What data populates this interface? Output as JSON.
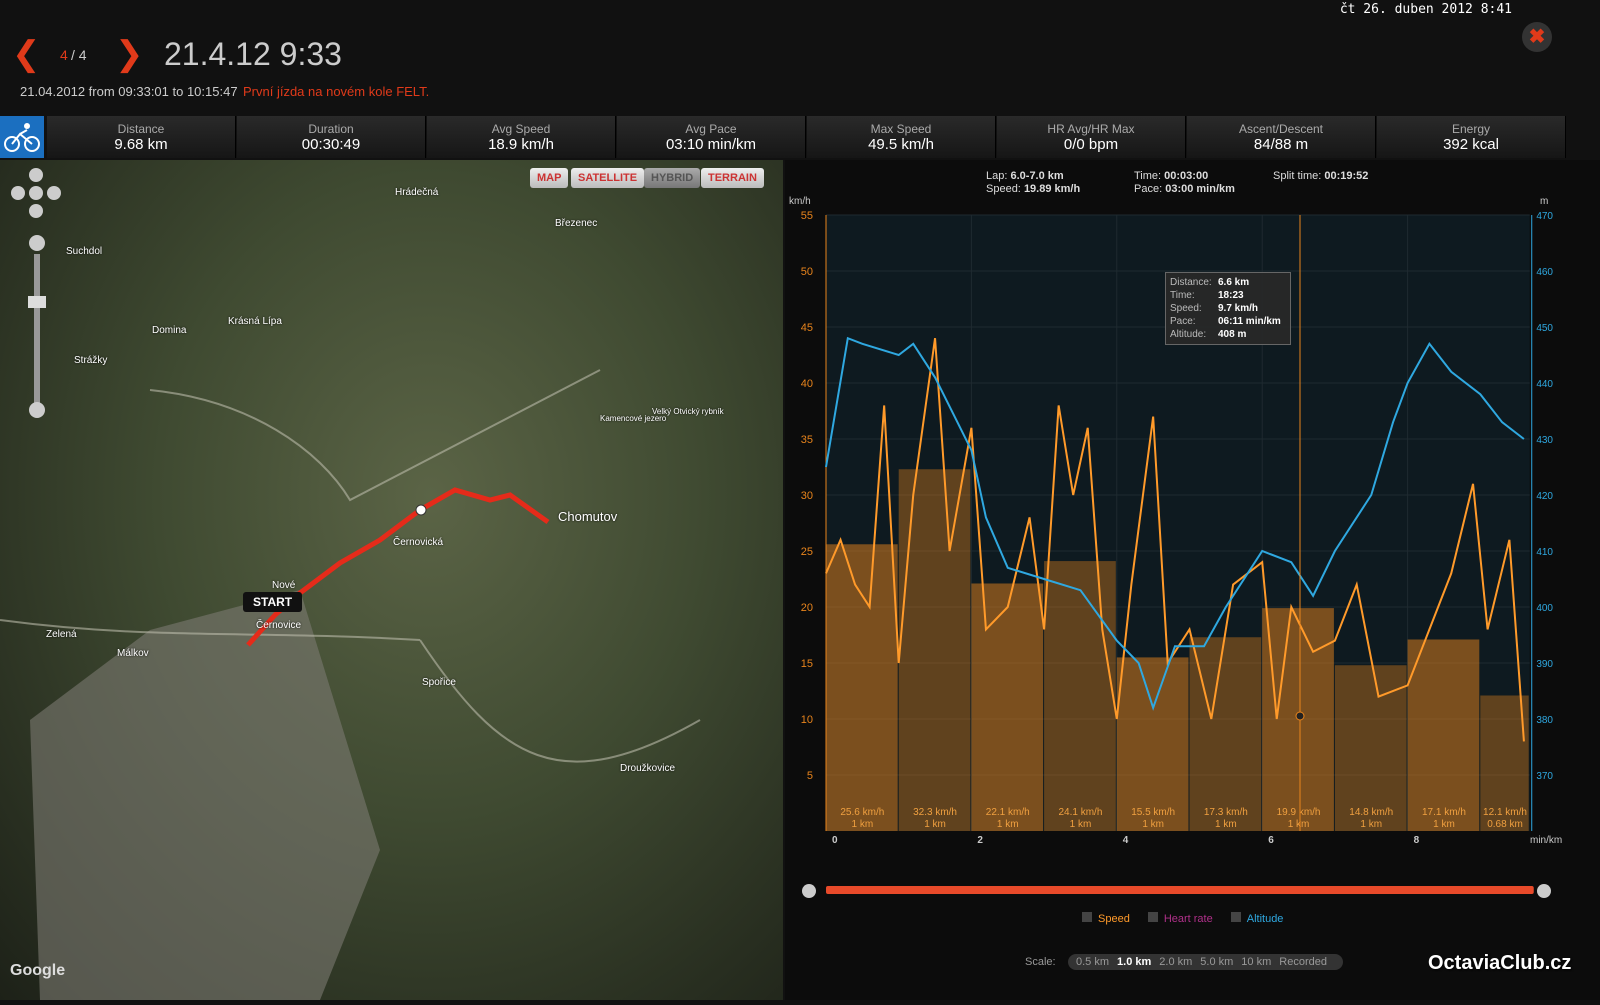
{
  "header": {
    "clock": "čt 26. duben 2012 8:41",
    "page": "4",
    "of": "/ 4",
    "title": "21.4.12 9:33",
    "date_range": "21.04.2012 from 09:33:01 to 10:15:47",
    "note": "První jízda na novém kole FELT."
  },
  "stats": [
    {
      "label": "Distance",
      "value": "9.68 km"
    },
    {
      "label": "Duration",
      "value": "00:30:49"
    },
    {
      "label": "Avg Speed",
      "value": "18.9 km/h"
    },
    {
      "label": "Avg Pace",
      "value": "03:10 min/km"
    },
    {
      "label": "Max Speed",
      "value": "49.5 km/h"
    },
    {
      "label": "HR Avg/HR Max",
      "value": "0/0 bpm"
    },
    {
      "label": "Ascent/Descent",
      "value": "84/88 m"
    },
    {
      "label": "Energy",
      "value": "392 kcal"
    }
  ],
  "map": {
    "buttons": [
      "MAP",
      "SATELLITE",
      "HYBRID",
      "TERRAIN"
    ],
    "start": "START",
    "brand": "Google",
    "places": [
      "Hrádečná",
      "Březenec",
      "Suchdol",
      "Domina",
      "Krásná Lípa",
      "Strážky",
      "Chomutov",
      "Černovická",
      "Nové",
      "Černovice",
      "Zelená",
      "Málkov",
      "Spořice",
      "Droužkovice",
      "Kamencové jezero",
      "Velký Otvický rybník"
    ]
  },
  "split": {
    "lap_label": "Lap:",
    "lap": "6.0-7.0 km",
    "speed_label": "Speed:",
    "speed": "19.89 km/h",
    "time_label": "Time:",
    "time": "00:03:00",
    "pace_label": "Pace:",
    "pace": "03:00 min/km",
    "split_label": "Split time:",
    "split": "00:19:52"
  },
  "tooltip": [
    [
      "Distance:",
      "6.6 km"
    ],
    [
      "Time:",
      "18:23"
    ],
    [
      "Speed:",
      "9.7 km/h"
    ],
    [
      "Pace:",
      "06:11 min/km"
    ],
    [
      "Altitude:",
      "408 m"
    ]
  ],
  "chart_data": {
    "type": "line",
    "y_label": "km/h",
    "y2_label": "m",
    "x_label": "min/km",
    "xlim": [
      0,
      9.68
    ],
    "xticks": [
      0,
      2,
      4,
      6,
      8
    ],
    "ylim": [
      0,
      55
    ],
    "yticks": [
      5,
      10,
      15,
      20,
      25,
      30,
      35,
      40,
      45,
      50,
      55
    ],
    "y2lim": [
      360,
      470
    ],
    "y2ticks": [
      370,
      380,
      390,
      400,
      410,
      420,
      430,
      440,
      450,
      460,
      470
    ],
    "laps": {
      "color": "#e8841c",
      "values": [
        25.6,
        32.3,
        22.1,
        24.1,
        15.5,
        17.3,
        19.9,
        14.8,
        17.1,
        12.1
      ],
      "value_labels": [
        "25.6 km/h",
        "32.3 km/h",
        "22.1 km/h",
        "24.1 km/h",
        "15.5 km/h",
        "17.3 km/h",
        "19.9 km/h",
        "14.8 km/h",
        "17.1 km/h",
        "12.1 km/h"
      ],
      "distances": [
        1,
        1,
        1,
        1,
        1,
        1,
        1,
        1,
        1,
        0.68
      ],
      "distance_labels": [
        "1 km",
        "1 km",
        "1 km",
        "1 km",
        "1 km",
        "1 km",
        "1 km",
        "1 km",
        "1 km",
        "0.68 km"
      ]
    },
    "series": [
      {
        "name": "Speed",
        "color": "#ff9a2a",
        "x": [
          0,
          0.2,
          0.4,
          0.6,
          0.8,
          1.0,
          1.2,
          1.5,
          1.7,
          2.0,
          2.2,
          2.5,
          2.8,
          3.0,
          3.2,
          3.4,
          3.6,
          3.8,
          4.0,
          4.2,
          4.5,
          4.7,
          5.0,
          5.3,
          5.6,
          6.0,
          6.2,
          6.4,
          6.7,
          7.0,
          7.3,
          7.6,
          8.0,
          8.3,
          8.6,
          8.9,
          9.1,
          9.4,
          9.6
        ],
        "values": [
          23,
          26,
          22,
          20,
          38,
          15,
          30,
          44,
          25,
          36,
          18,
          20,
          28,
          18,
          38,
          30,
          36,
          18,
          10,
          22,
          37,
          15,
          18,
          10,
          22,
          24,
          10,
          20,
          16,
          17,
          22,
          12,
          13,
          18,
          23,
          31,
          18,
          26,
          8
        ]
      },
      {
        "name": "Heart rate",
        "color": "#b0308a",
        "x": [],
        "values": []
      },
      {
        "name": "Altitude",
        "color": "#2fa8e0",
        "axis": "y2",
        "x": [
          0,
          0.3,
          0.5,
          1.0,
          1.2,
          1.5,
          2.0,
          2.2,
          2.5,
          3.0,
          3.5,
          4.0,
          4.3,
          4.5,
          4.8,
          5.2,
          5.5,
          6.0,
          6.4,
          6.7,
          7.0,
          7.5,
          7.8,
          8.0,
          8.3,
          8.6,
          9.0,
          9.3,
          9.6
        ],
        "values": [
          425,
          448,
          447,
          445,
          447,
          441,
          428,
          416,
          407,
          405,
          403,
          394,
          390,
          382,
          393,
          393,
          400,
          410,
          408,
          402,
          410,
          420,
          433,
          440,
          447,
          442,
          438,
          433,
          430
        ]
      }
    ]
  },
  "scale": {
    "label": "Scale:",
    "options": [
      "0.5 km",
      "1.0 km",
      "2.0 km",
      "5.0 km",
      "10 km",
      "Recorded"
    ]
  },
  "watermark": "OctaviaClub.cz"
}
